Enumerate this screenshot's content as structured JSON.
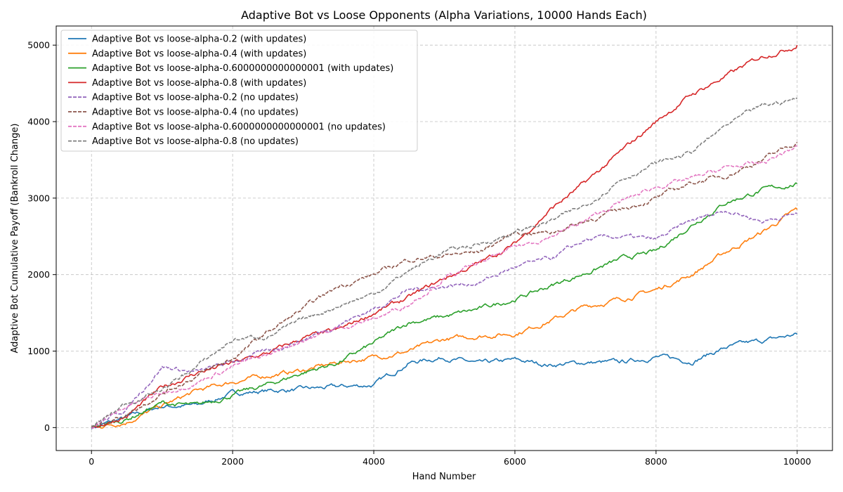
{
  "chart_data": {
    "type": "line",
    "title": "Adaptive Bot vs Loose Opponents (Alpha Variations, 10000 Hands Each)",
    "xlabel": "Hand Number",
    "ylabel": "Adaptive Bot Cumulative Payoff (Bankroll Change)",
    "xlim": [
      -500,
      10500
    ],
    "ylim": [
      -300,
      5250
    ],
    "xticks": [
      0,
      2000,
      4000,
      6000,
      8000,
      10000
    ],
    "yticks": [
      0,
      1000,
      2000,
      3000,
      4000,
      5000
    ],
    "grid": true,
    "legend_position": "top-left",
    "series": [
      {
        "name": "Adaptive Bot vs loose-alpha-0.2 (with updates)",
        "color": "#1f77b4",
        "style": "solid",
        "x": [
          0,
          500,
          1000,
          1500,
          2000,
          2500,
          3000,
          3500,
          4000,
          4500,
          5000,
          5500,
          6000,
          6500,
          7000,
          7500,
          8000,
          8500,
          9000,
          9500,
          10000
        ],
        "y": [
          0,
          130,
          280,
          290,
          450,
          480,
          500,
          530,
          560,
          850,
          920,
          830,
          880,
          820,
          850,
          850,
          930,
          870,
          1050,
          1130,
          1220
        ]
      },
      {
        "name": "Adaptive Bot vs loose-alpha-0.4 (with updates)",
        "color": "#ff7f0e",
        "style": "solid",
        "x": [
          0,
          500,
          1000,
          1500,
          2000,
          2500,
          3000,
          3500,
          4000,
          4500,
          5000,
          5500,
          6000,
          6500,
          7000,
          7500,
          8000,
          8500,
          9000,
          9500,
          10000
        ],
        "y": [
          0,
          80,
          280,
          480,
          600,
          680,
          750,
          850,
          920,
          1000,
          1150,
          1200,
          1230,
          1400,
          1580,
          1680,
          1800,
          2000,
          2300,
          2550,
          2850
        ]
      },
      {
        "name": "Adaptive Bot vs loose-alpha-0.6000000000000001 (with updates)",
        "color": "#2ca02c",
        "style": "solid",
        "x": [
          0,
          500,
          1000,
          1500,
          2000,
          2500,
          3000,
          3500,
          4000,
          4500,
          5000,
          5500,
          6000,
          6500,
          7000,
          7500,
          8000,
          8500,
          9000,
          9500,
          10000
        ],
        "y": [
          0,
          110,
          320,
          280,
          430,
          560,
          720,
          850,
          1100,
          1380,
          1450,
          1550,
          1680,
          1850,
          2020,
          2200,
          2300,
          2650,
          2950,
          3100,
          3190
        ]
      },
      {
        "name": "Adaptive Bot vs loose-alpha-0.8 (with updates)",
        "color": "#d62728",
        "style": "solid",
        "x": [
          0,
          500,
          1000,
          1500,
          2000,
          2500,
          3000,
          3500,
          4000,
          4500,
          5000,
          5500,
          6000,
          6500,
          7000,
          7500,
          8000,
          8500,
          9000,
          9500,
          10000
        ],
        "y": [
          0,
          150,
          520,
          720,
          840,
          970,
          1170,
          1270,
          1500,
          1700,
          1950,
          2150,
          2400,
          2850,
          3200,
          3600,
          4000,
          4350,
          4600,
          4850,
          5000
        ]
      },
      {
        "name": "Adaptive Bot vs loose-alpha-0.2 (no updates)",
        "color": "#9467bd",
        "style": "dashed",
        "x": [
          0,
          500,
          1000,
          1500,
          2000,
          2500,
          3000,
          3500,
          4000,
          4500,
          5000,
          5500,
          6000,
          6500,
          7000,
          7500,
          8000,
          8500,
          9000,
          9500,
          10000
        ],
        "y": [
          0,
          250,
          800,
          720,
          860,
          1000,
          1150,
          1350,
          1550,
          1800,
          1850,
          1900,
          2100,
          2200,
          2450,
          2500,
          2450,
          2700,
          2850,
          2700,
          2800
        ]
      },
      {
        "name": "Adaptive Bot vs loose-alpha-0.4 (no updates)",
        "color": "#8c564b",
        "style": "dashed",
        "x": [
          0,
          500,
          1000,
          1500,
          2000,
          2500,
          3000,
          3500,
          4000,
          4500,
          5000,
          5500,
          6000,
          6500,
          7000,
          7500,
          8000,
          8500,
          9000,
          9500,
          10000
        ],
        "y": [
          0,
          180,
          450,
          680,
          900,
          1250,
          1550,
          1850,
          2000,
          2200,
          2250,
          2300,
          2550,
          2550,
          2700,
          2850,
          3000,
          3200,
          3300,
          3500,
          3730
        ]
      },
      {
        "name": "Adaptive Bot vs loose-alpha-0.6000000000000001 (no updates)",
        "color": "#e377c2",
        "style": "dashed",
        "x": [
          0,
          500,
          1000,
          1500,
          2000,
          2500,
          3000,
          3500,
          4000,
          4500,
          5000,
          5500,
          6000,
          6500,
          7000,
          7500,
          8000,
          8500,
          9000,
          9500,
          10000
        ],
        "y": [
          0,
          280,
          450,
          600,
          800,
          950,
          1150,
          1300,
          1420,
          1620,
          1950,
          2150,
          2350,
          2500,
          2700,
          2950,
          3150,
          3250,
          3400,
          3450,
          3680
        ]
      },
      {
        "name": "Adaptive Bot vs loose-alpha-0.8 (no updates)",
        "color": "#7f7f7f",
        "style": "dashed",
        "x": [
          0,
          500,
          1000,
          1500,
          2000,
          2500,
          3000,
          3500,
          4000,
          4500,
          5000,
          5500,
          6000,
          6500,
          7000,
          7500,
          8000,
          8500,
          9000,
          9500,
          10000
        ],
        "y": [
          0,
          320,
          500,
          800,
          1150,
          1200,
          1400,
          1600,
          1750,
          2050,
          2300,
          2400,
          2550,
          2700,
          2900,
          3250,
          3450,
          3600,
          3950,
          4200,
          4300
        ]
      }
    ]
  }
}
